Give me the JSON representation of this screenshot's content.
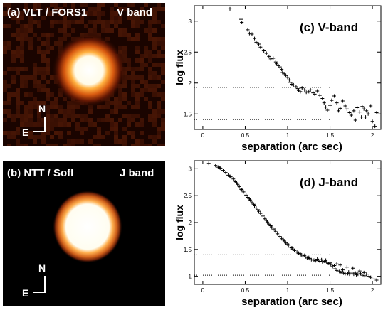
{
  "images": [
    {
      "label": "(a) VLT / FORS1",
      "band": "V band",
      "north": "N",
      "east": "E"
    },
    {
      "label": "(b) NTT / Sofl",
      "band": "J band",
      "north": "N",
      "east": "E"
    }
  ],
  "chart_data": [
    {
      "type": "scatter",
      "title": "(c) V-band",
      "xlabel": "separation (arc sec)",
      "ylabel": "log flux",
      "xlim": [
        -0.1,
        2.1
      ],
      "ylim": [
        1.25,
        3.25
      ],
      "xticks": [
        "0",
        "0.5",
        "1",
        "1.5",
        "2"
      ],
      "xtick_values": [
        0,
        0.5,
        1,
        1.5,
        2
      ],
      "yticks": [
        "1.5",
        "2",
        "2.5",
        "3"
      ],
      "ytick_values": [
        1.5,
        2,
        2.5,
        3
      ],
      "reference_lines": [
        {
          "y": 1.93,
          "x_end": 1.5,
          "style": "dotted"
        },
        {
          "y": 1.41,
          "x_end": 1.5,
          "style": "dotted"
        }
      ],
      "points": [
        [
          0.32,
          3.2
        ],
        [
          0.45,
          3.03
        ],
        [
          0.46,
          2.98
        ],
        [
          0.53,
          2.86
        ],
        [
          0.55,
          2.8
        ],
        [
          0.58,
          2.79
        ],
        [
          0.61,
          2.72
        ],
        [
          0.63,
          2.66
        ],
        [
          0.66,
          2.63
        ],
        [
          0.68,
          2.58
        ],
        [
          0.71,
          2.53
        ],
        [
          0.72,
          2.52
        ],
        [
          0.75,
          2.48
        ],
        [
          0.78,
          2.43
        ],
        [
          0.8,
          2.39
        ],
        [
          0.83,
          2.4
        ],
        [
          0.86,
          2.34
        ],
        [
          0.87,
          2.31
        ],
        [
          0.89,
          2.28
        ],
        [
          0.91,
          2.26
        ],
        [
          0.93,
          2.22
        ],
        [
          0.94,
          2.17
        ],
        [
          0.96,
          2.15
        ],
        [
          0.98,
          2.12
        ],
        [
          1.0,
          2.09
        ],
        [
          1.02,
          2.05
        ],
        [
          1.03,
          2.01
        ],
        [
          1.05,
          1.98
        ],
        [
          1.07,
          1.97
        ],
        [
          1.1,
          1.94
        ],
        [
          1.12,
          1.91
        ],
        [
          1.13,
          1.88
        ],
        [
          1.15,
          1.86
        ],
        [
          1.17,
          1.92
        ],
        [
          1.2,
          1.89
        ],
        [
          1.22,
          1.85
        ],
        [
          1.25,
          1.86
        ],
        [
          1.27,
          1.89
        ],
        [
          1.3,
          1.84
        ],
        [
          1.32,
          1.82
        ],
        [
          1.35,
          1.87
        ],
        [
          1.38,
          1.8
        ],
        [
          1.41,
          1.75
        ],
        [
          1.43,
          1.68
        ],
        [
          1.45,
          1.61
        ],
        [
          1.47,
          1.56
        ],
        [
          1.5,
          1.64
        ],
        [
          1.52,
          1.72
        ],
        [
          1.55,
          1.79
        ],
        [
          1.58,
          1.68
        ],
        [
          1.6,
          1.55
        ],
        [
          1.62,
          1.59
        ],
        [
          1.65,
          1.71
        ],
        [
          1.68,
          1.63
        ],
        [
          1.7,
          1.58
        ],
        [
          1.73,
          1.52
        ],
        [
          1.75,
          1.48
        ],
        [
          1.78,
          1.55
        ],
        [
          1.8,
          1.4
        ],
        [
          1.82,
          1.6
        ],
        [
          1.85,
          1.53
        ],
        [
          1.87,
          1.45
        ],
        [
          1.9,
          1.58
        ],
        [
          1.92,
          1.45
        ],
        [
          1.95,
          1.5
        ],
        [
          1.98,
          1.63
        ],
        [
          2.0,
          1.38
        ],
        [
          2.03,
          1.3
        ],
        [
          2.05,
          1.52
        ],
        [
          1.88,
          1.62
        ],
        [
          1.93,
          1.55
        ]
      ]
    },
    {
      "type": "scatter",
      "title": "(d) J-band",
      "xlabel": "separation (arc sec)",
      "ylabel": "log flux",
      "xlim": [
        -0.1,
        2.1
      ],
      "ylim": [
        0.85,
        3.15
      ],
      "xticks": [
        "0",
        "0.5",
        "1",
        "1.5",
        "2"
      ],
      "xtick_values": [
        0,
        0.5,
        1,
        1.5,
        2
      ],
      "yticks": [
        "1",
        "1.5",
        "2",
        "2.5",
        "3"
      ],
      "ytick_values": [
        1,
        1.5,
        2,
        2.5,
        3
      ],
      "reference_lines": [
        {
          "y": 1.4,
          "x_end": 1.5,
          "style": "dotted"
        },
        {
          "y": 1.02,
          "x_end": 1.5,
          "style": "dotted"
        }
      ],
      "points": [
        [
          0.07,
          3.1
        ],
        [
          0.15,
          3.06
        ],
        [
          0.18,
          3.03
        ],
        [
          0.21,
          3.01
        ],
        [
          0.24,
          2.97
        ],
        [
          0.27,
          2.93
        ],
        [
          0.3,
          2.88
        ],
        [
          0.33,
          2.85
        ],
        [
          0.36,
          2.81
        ],
        [
          0.38,
          2.76
        ],
        [
          0.41,
          2.71
        ],
        [
          0.43,
          2.67
        ],
        [
          0.46,
          2.61
        ],
        [
          0.48,
          2.57
        ],
        [
          0.51,
          2.51
        ],
        [
          0.53,
          2.47
        ],
        [
          0.56,
          2.42
        ],
        [
          0.58,
          2.37
        ],
        [
          0.61,
          2.31
        ],
        [
          0.63,
          2.27
        ],
        [
          0.66,
          2.21
        ],
        [
          0.68,
          2.17
        ],
        [
          0.71,
          2.12
        ],
        [
          0.73,
          2.07
        ],
        [
          0.76,
          2.01
        ],
        [
          0.78,
          1.97
        ],
        [
          0.81,
          1.92
        ],
        [
          0.83,
          1.88
        ],
        [
          0.86,
          1.83
        ],
        [
          0.88,
          1.79
        ],
        [
          0.91,
          1.74
        ],
        [
          0.93,
          1.7
        ],
        [
          0.96,
          1.66
        ],
        [
          0.98,
          1.62
        ],
        [
          1.01,
          1.58
        ],
        [
          1.03,
          1.54
        ],
        [
          1.06,
          1.51
        ],
        [
          1.08,
          1.48
        ],
        [
          1.11,
          1.45
        ],
        [
          1.13,
          1.43
        ],
        [
          1.16,
          1.4
        ],
        [
          1.18,
          1.38
        ],
        [
          1.21,
          1.36
        ],
        [
          1.23,
          1.34
        ],
        [
          1.26,
          1.33
        ],
        [
          1.28,
          1.31
        ],
        [
          1.31,
          1.3
        ],
        [
          1.33,
          1.29
        ],
        [
          1.36,
          1.3
        ],
        [
          1.38,
          1.28
        ],
        [
          1.41,
          1.27
        ],
        [
          1.43,
          1.28
        ],
        [
          1.46,
          1.26
        ],
        [
          1.48,
          1.24
        ],
        [
          1.51,
          1.22
        ],
        [
          1.53,
          1.18
        ],
        [
          1.56,
          1.14
        ],
        [
          1.58,
          1.11
        ],
        [
          1.61,
          1.09
        ],
        [
          1.63,
          1.07
        ],
        [
          1.66,
          1.06
        ],
        [
          1.68,
          1.05
        ],
        [
          1.71,
          1.05
        ],
        [
          1.73,
          1.04
        ],
        [
          1.76,
          1.06
        ],
        [
          1.78,
          1.04
        ],
        [
          1.81,
          1.03
        ],
        [
          1.83,
          1.04
        ],
        [
          1.86,
          1.05
        ],
        [
          1.88,
          1.02
        ],
        [
          1.91,
          1.01
        ],
        [
          1.93,
          1.04
        ],
        [
          1.96,
          1.0
        ],
        [
          1.98,
          0.98
        ],
        [
          2.02,
          0.95
        ],
        [
          2.05,
          0.93
        ],
        [
          0.2,
          3.02
        ],
        [
          0.32,
          2.86
        ],
        [
          0.45,
          2.62
        ],
        [
          0.55,
          2.44
        ],
        [
          0.65,
          2.24
        ],
        [
          0.75,
          2.04
        ],
        [
          0.85,
          1.86
        ],
        [
          0.95,
          1.68
        ],
        [
          1.05,
          1.53
        ],
        [
          1.15,
          1.42
        ],
        [
          1.25,
          1.35
        ],
        [
          1.35,
          1.32
        ],
        [
          1.45,
          1.3
        ],
        [
          1.55,
          1.2
        ],
        [
          1.65,
          1.12
        ],
        [
          1.72,
          1.08
        ],
        [
          1.8,
          1.06
        ],
        [
          1.9,
          1.07
        ],
        [
          1.62,
          1.21
        ],
        [
          1.7,
          1.17
        ],
        [
          1.77,
          1.15
        ],
        [
          1.85,
          1.1
        ],
        [
          1.5,
          1.25
        ],
        [
          1.58,
          1.23
        ],
        [
          0.4,
          2.74
        ],
        [
          0.6,
          2.34
        ],
        [
          0.8,
          1.94
        ],
        [
          1.0,
          1.6
        ],
        [
          1.2,
          1.39
        ],
        [
          1.4,
          1.31
        ]
      ]
    }
  ]
}
